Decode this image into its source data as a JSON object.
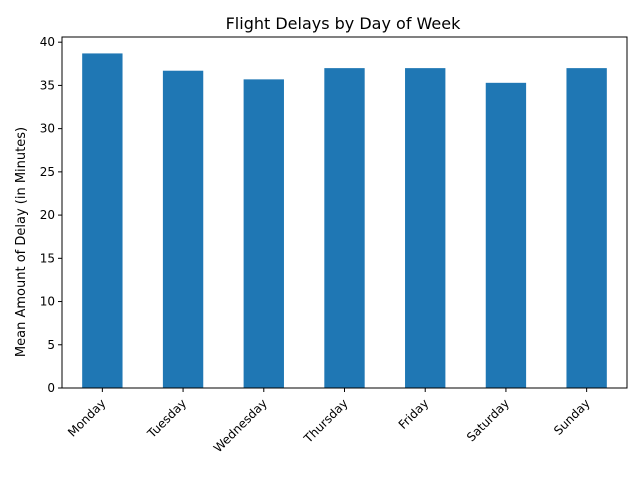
{
  "chart_data": {
    "type": "bar",
    "title": "Flight Delays by Day of Week",
    "xlabel": "",
    "ylabel": "Mean Amount of Delay (in Minutes)",
    "categories": [
      "Monday",
      "Tuesday",
      "Wednesday",
      "Thursday",
      "Friday",
      "Saturday",
      "Sunday"
    ],
    "values": [
      38.7,
      36.7,
      35.7,
      37.0,
      37.0,
      35.3,
      37.0
    ],
    "ylim": [
      0,
      40.6
    ],
    "yticks": [
      0,
      5,
      10,
      15,
      20,
      25,
      30,
      35,
      40
    ],
    "bar_color": "#1f77b4",
    "grid": false,
    "legend": "none"
  }
}
